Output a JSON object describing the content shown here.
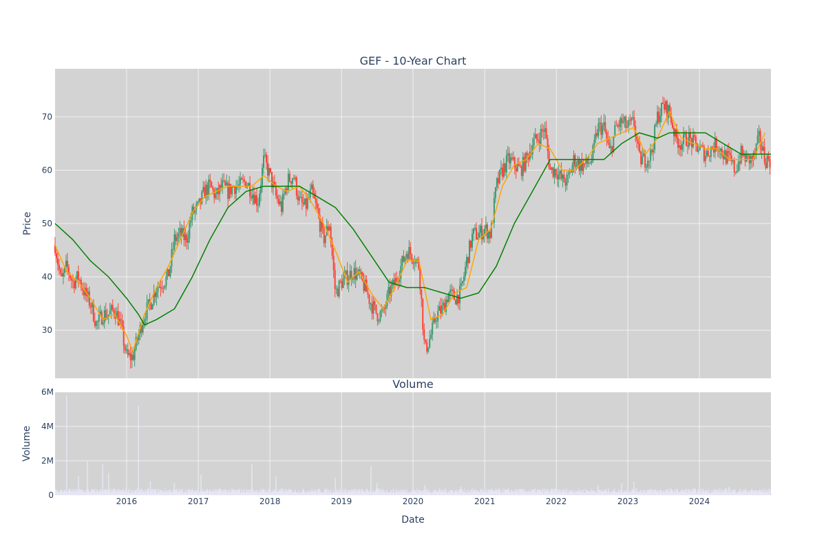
{
  "chart_data": [
    {
      "type": "candlestick",
      "title": "GEF - 10-Year Chart",
      "xlabel": "",
      "ylabel": "Price",
      "xlim": [
        "2015-01-01",
        "2024-12-31"
      ],
      "ylim": [
        21,
        79
      ],
      "grid": true,
      "colors": {
        "up": "#3d9970",
        "down": "#ff4136",
        "ma_short": "#ffa500",
        "ma_long": "#008000",
        "plot_bg": "#d3d3d3"
      },
      "y_ticks": [
        30,
        40,
        50,
        60,
        70
      ],
      "series": [
        {
          "kind": "close",
          "points": [
            [
              "2015-01-01",
              46
            ],
            [
              "2015-02-01",
              39
            ],
            [
              "2015-03-01",
              42
            ],
            [
              "2015-04-01",
              39
            ],
            [
              "2015-05-01",
              40
            ],
            [
              "2015-06-01",
              37
            ],
            [
              "2015-07-01",
              35
            ],
            [
              "2015-08-01",
              31
            ],
            [
              "2015-09-01",
              33
            ],
            [
              "2015-10-01",
              33
            ],
            [
              "2015-11-01",
              34
            ],
            [
              "2015-12-01",
              31
            ],
            [
              "2016-01-01",
              25
            ],
            [
              "2016-02-01",
              25
            ],
            [
              "2016-03-01",
              29
            ],
            [
              "2016-04-01",
              33
            ],
            [
              "2016-05-01",
              35
            ],
            [
              "2016-06-01",
              38
            ],
            [
              "2016-07-01",
              39
            ],
            [
              "2016-08-01",
              40
            ],
            [
              "2016-09-01",
              47
            ],
            [
              "2016-10-01",
              48
            ],
            [
              "2016-11-01",
              47
            ],
            [
              "2016-12-01",
              52
            ],
            [
              "2017-01-01",
              53
            ],
            [
              "2017-02-01",
              56
            ],
            [
              "2017-03-01",
              57
            ],
            [
              "2017-04-01",
              55
            ],
            [
              "2017-05-01",
              57
            ],
            [
              "2017-06-01",
              56
            ],
            [
              "2017-07-01",
              57
            ],
            [
              "2017-08-01",
              57
            ],
            [
              "2017-09-01",
              58
            ],
            [
              "2017-10-01",
              56
            ],
            [
              "2017-11-01",
              54
            ],
            [
              "2017-12-01",
              62
            ],
            [
              "2018-01-01",
              59
            ],
            [
              "2018-02-01",
              55
            ],
            [
              "2018-03-01",
              53
            ],
            [
              "2018-04-01",
              58
            ],
            [
              "2018-05-01",
              59
            ],
            [
              "2018-06-01",
              54
            ],
            [
              "2018-07-01",
              53
            ],
            [
              "2018-08-01",
              56
            ],
            [
              "2018-09-01",
              52
            ],
            [
              "2018-10-01",
              47
            ],
            [
              "2018-11-01",
              50
            ],
            [
              "2018-12-01",
              37
            ],
            [
              "2019-01-01",
              39
            ],
            [
              "2019-02-01",
              40
            ],
            [
              "2019-03-01",
              41
            ],
            [
              "2019-04-01",
              40
            ],
            [
              "2019-05-01",
              38
            ],
            [
              "2019-06-01",
              35
            ],
            [
              "2019-07-01",
              33
            ],
            [
              "2019-08-01",
              33
            ],
            [
              "2019-09-01",
              37
            ],
            [
              "2019-10-01",
              39
            ],
            [
              "2019-11-01",
              42
            ],
            [
              "2019-12-01",
              45
            ],
            [
              "2020-01-01",
              44
            ],
            [
              "2020-02-01",
              42
            ],
            [
              "2020-03-01",
              26
            ],
            [
              "2020-04-01",
              29
            ],
            [
              "2020-05-01",
              33
            ],
            [
              "2020-06-01",
              34
            ],
            [
              "2020-07-01",
              37
            ],
            [
              "2020-08-01",
              36
            ],
            [
              "2020-09-01",
              37
            ],
            [
              "2020-10-01",
              43
            ],
            [
              "2020-11-01",
              48
            ],
            [
              "2020-12-01",
              48
            ],
            [
              "2021-01-01",
              49
            ],
            [
              "2021-02-01",
              48
            ],
            [
              "2021-03-01",
              57
            ],
            [
              "2021-04-01",
              60
            ],
            [
              "2021-05-01",
              62
            ],
            [
              "2021-06-01",
              61
            ],
            [
              "2021-07-01",
              60
            ],
            [
              "2021-08-01",
              62
            ],
            [
              "2021-09-01",
              65
            ],
            [
              "2021-10-01",
              66
            ],
            [
              "2021-11-01",
              68
            ],
            [
              "2021-12-01",
              60
            ],
            [
              "2022-01-01",
              60
            ],
            [
              "2022-02-01",
              58
            ],
            [
              "2022-03-01",
              58
            ],
            [
              "2022-04-01",
              62
            ],
            [
              "2022-05-01",
              61
            ],
            [
              "2022-06-01",
              61
            ],
            [
              "2022-07-01",
              62
            ],
            [
              "2022-08-01",
              68
            ],
            [
              "2022-09-01",
              68
            ],
            [
              "2022-10-01",
              63
            ],
            [
              "2022-11-01",
              68
            ],
            [
              "2022-12-01",
              69
            ],
            [
              "2023-01-01",
              68
            ],
            [
              "2023-02-01",
              69
            ],
            [
              "2023-03-01",
              62
            ],
            [
              "2023-04-01",
              62
            ],
            [
              "2023-05-01",
              63
            ],
            [
              "2023-06-01",
              70
            ],
            [
              "2023-07-01",
              72
            ],
            [
              "2023-08-01",
              71
            ],
            [
              "2023-09-01",
              66
            ],
            [
              "2023-10-01",
              65
            ],
            [
              "2023-11-01",
              66
            ],
            [
              "2023-12-01",
              65
            ],
            [
              "2024-01-01",
              64
            ],
            [
              "2024-02-01",
              63
            ],
            [
              "2024-03-01",
              64
            ],
            [
              "2024-04-01",
              65
            ],
            [
              "2024-05-01",
              63
            ],
            [
              "2024-06-01",
              62
            ],
            [
              "2024-07-01",
              60
            ],
            [
              "2024-08-01",
              63
            ],
            [
              "2024-09-01",
              62
            ],
            [
              "2024-10-01",
              62
            ],
            [
              "2024-11-01",
              66
            ],
            [
              "2024-12-01",
              62
            ]
          ]
        },
        {
          "kind": "moving_average_short",
          "points": [
            [
              "2015-01-01",
              46
            ],
            [
              "2015-03-01",
              41
            ],
            [
              "2015-05-01",
              39
            ],
            [
              "2015-07-01",
              36
            ],
            [
              "2015-09-01",
              32
            ],
            [
              "2015-11-01",
              33
            ],
            [
              "2016-01-01",
              29
            ],
            [
              "2016-02-01",
              26
            ],
            [
              "2016-04-01",
              33
            ],
            [
              "2016-06-01",
              38
            ],
            [
              "2016-08-01",
              42
            ],
            [
              "2016-10-01",
              47
            ],
            [
              "2016-12-01",
              52
            ],
            [
              "2017-02-01",
              55
            ],
            [
              "2017-04-01",
              56
            ],
            [
              "2017-06-01",
              57
            ],
            [
              "2017-08-01",
              57
            ],
            [
              "2017-10-01",
              57
            ],
            [
              "2017-12-01",
              59
            ],
            [
              "2018-02-01",
              57
            ],
            [
              "2018-04-01",
              56
            ],
            [
              "2018-06-01",
              57
            ],
            [
              "2018-08-01",
              54
            ],
            [
              "2018-10-01",
              50
            ],
            [
              "2018-12-01",
              45
            ],
            [
              "2019-02-01",
              39
            ],
            [
              "2019-04-01",
              41
            ],
            [
              "2019-06-01",
              37
            ],
            [
              "2019-08-01",
              34
            ],
            [
              "2019-10-01",
              38
            ],
            [
              "2019-12-01",
              43
            ],
            [
              "2020-02-01",
              43
            ],
            [
              "2020-04-01",
              32
            ],
            [
              "2020-06-01",
              33
            ],
            [
              "2020-08-01",
              37
            ],
            [
              "2020-10-01",
              38
            ],
            [
              "2020-12-01",
              47
            ],
            [
              "2021-02-01",
              49
            ],
            [
              "2021-04-01",
              57
            ],
            [
              "2021-06-01",
              61
            ],
            [
              "2021-08-01",
              62
            ],
            [
              "2021-10-01",
              65
            ],
            [
              "2021-12-01",
              64
            ],
            [
              "2022-02-01",
              60
            ],
            [
              "2022-04-01",
              60
            ],
            [
              "2022-06-01",
              62
            ],
            [
              "2022-08-01",
              65
            ],
            [
              "2022-10-01",
              66
            ],
            [
              "2022-12-01",
              67
            ],
            [
              "2023-02-01",
              68
            ],
            [
              "2023-04-01",
              63
            ],
            [
              "2023-06-01",
              66
            ],
            [
              "2023-08-01",
              71
            ],
            [
              "2023-10-01",
              66
            ],
            [
              "2023-12-01",
              65
            ],
            [
              "2024-02-01",
              64
            ],
            [
              "2024-04-01",
              64
            ],
            [
              "2024-06-01",
              62
            ],
            [
              "2024-08-01",
              62
            ],
            [
              "2024-10-01",
              62
            ],
            [
              "2024-12-01",
              67
            ]
          ]
        },
        {
          "kind": "moving_average_long",
          "points": [
            [
              "2015-01-01",
              50
            ],
            [
              "2015-04-01",
              47
            ],
            [
              "2015-07-01",
              43
            ],
            [
              "2015-10-01",
              40
            ],
            [
              "2016-01-01",
              36
            ],
            [
              "2016-03-01",
              33
            ],
            [
              "2016-04-01",
              31
            ],
            [
              "2016-06-01",
              32
            ],
            [
              "2016-09-01",
              34
            ],
            [
              "2016-12-01",
              40
            ],
            [
              "2017-03-01",
              47
            ],
            [
              "2017-06-01",
              53
            ],
            [
              "2017-09-01",
              56
            ],
            [
              "2017-12-01",
              57
            ],
            [
              "2018-03-01",
              57
            ],
            [
              "2018-06-01",
              57
            ],
            [
              "2018-09-01",
              55
            ],
            [
              "2018-12-01",
              53
            ],
            [
              "2019-03-01",
              49
            ],
            [
              "2019-06-01",
              44
            ],
            [
              "2019-09-01",
              39
            ],
            [
              "2019-12-01",
              38
            ],
            [
              "2020-03-01",
              38
            ],
            [
              "2020-06-01",
              37
            ],
            [
              "2020-09-01",
              36
            ],
            [
              "2020-12-01",
              37
            ],
            [
              "2021-03-01",
              42
            ],
            [
              "2021-06-01",
              50
            ],
            [
              "2021-09-01",
              56
            ],
            [
              "2021-12-01",
              62
            ],
            [
              "2022-03-01",
              62
            ],
            [
              "2022-06-01",
              62
            ],
            [
              "2022-09-01",
              62
            ],
            [
              "2022-12-01",
              65
            ],
            [
              "2023-03-01",
              67
            ],
            [
              "2023-06-01",
              66
            ],
            [
              "2023-08-01",
              67
            ],
            [
              "2023-11-01",
              67
            ],
            [
              "2024-02-01",
              67
            ],
            [
              "2024-05-01",
              65
            ],
            [
              "2024-08-01",
              63
            ],
            [
              "2024-11-01",
              63
            ],
            [
              "2024-12-31",
              63
            ]
          ]
        }
      ]
    },
    {
      "type": "bar",
      "title": "Volume",
      "xlabel": "Date",
      "ylabel": "Volume",
      "xlim": [
        "2015-01-01",
        "2024-12-31"
      ],
      "ylim": [
        0,
        6000000
      ],
      "grid": true,
      "colors": {
        "bar": "#e6e6f5",
        "plot_bg": "#d3d3d3"
      },
      "y_ticks": [
        {
          "value": 0,
          "label": "0"
        },
        {
          "value": 2000000,
          "label": "2M"
        },
        {
          "value": 4000000,
          "label": "4M"
        },
        {
          "value": 6000000,
          "label": "6M"
        }
      ],
      "x_ticks": [
        "2016",
        "2017",
        "2018",
        "2019",
        "2020",
        "2021",
        "2022",
        "2023",
        "2024"
      ],
      "spikes": [
        [
          "2015-03-01",
          5800000
        ],
        [
          "2015-05-01",
          1100000
        ],
        [
          "2015-06-15",
          2000000
        ],
        [
          "2015-09-01",
          1800000
        ],
        [
          "2015-10-01",
          1300000
        ],
        [
          "2016-03-01",
          5200000
        ],
        [
          "2016-05-01",
          800000
        ],
        [
          "2016-09-01",
          700000
        ],
        [
          "2017-01-15",
          1200000
        ],
        [
          "2017-10-01",
          1800000
        ],
        [
          "2018-02-01",
          1100000
        ],
        [
          "2018-12-01",
          1000000
        ],
        [
          "2019-06-01",
          1700000
        ],
        [
          "2019-07-01",
          700000
        ],
        [
          "2020-03-01",
          600000
        ],
        [
          "2020-09-01",
          500000
        ],
        [
          "2021-01-01",
          1100000
        ],
        [
          "2022-08-01",
          600000
        ],
        [
          "2022-12-01",
          700000
        ],
        [
          "2023-02-01",
          800000
        ],
        [
          "2024-01-01",
          500000
        ],
        [
          "2024-06-01",
          500000
        ]
      ]
    }
  ]
}
